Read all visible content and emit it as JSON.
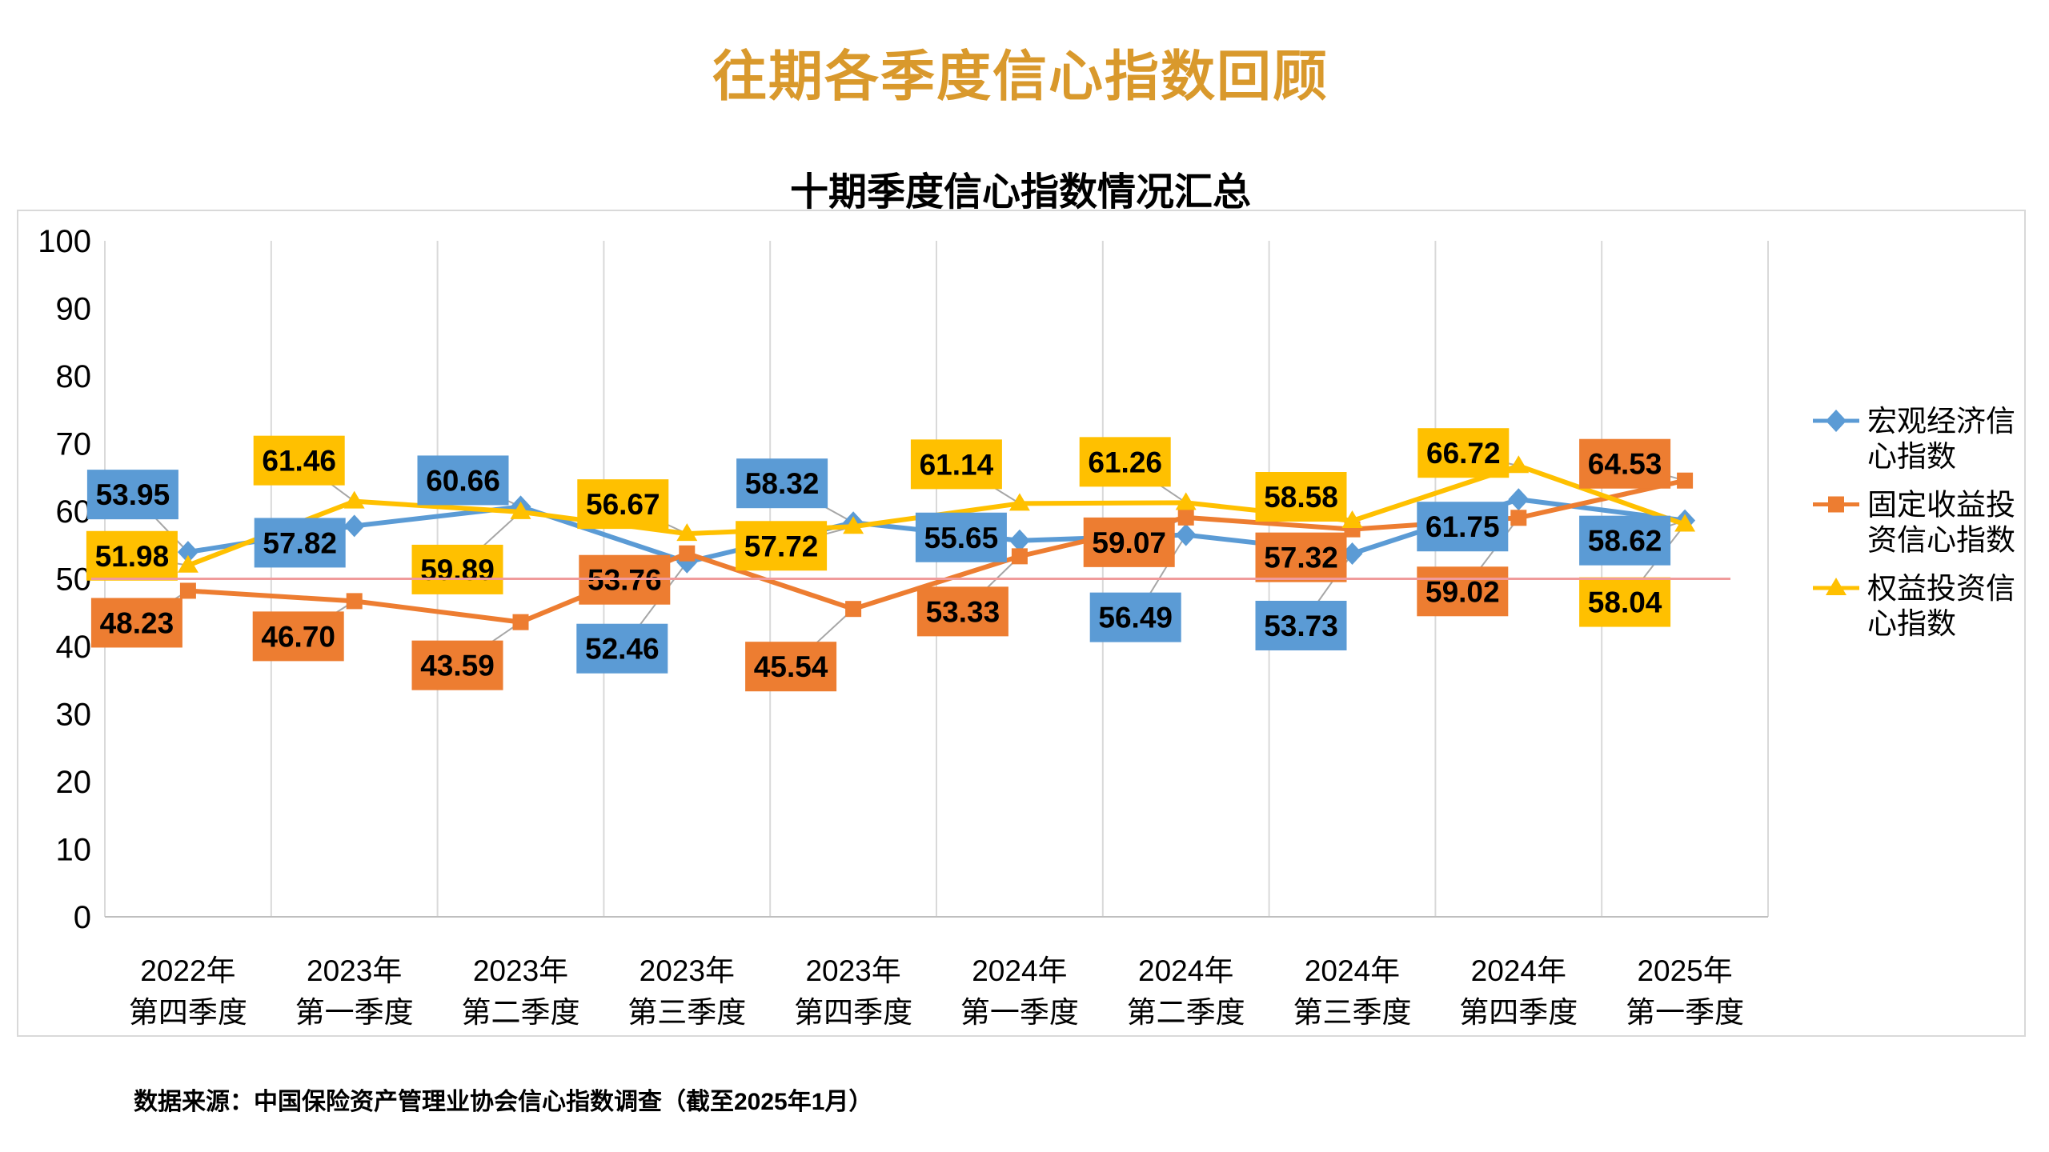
{
  "page": {
    "title": "往期各季度信心指数回顾",
    "title_color": "#D9992C",
    "source_note": "数据来源：中国保险资产管理业协会信心指数调查（截至2025年1月）"
  },
  "chart_data": {
    "type": "line",
    "title": "十期季度信心指数情况汇总",
    "categories": [
      {
        "year": "2022年",
        "quarter": "第四季度"
      },
      {
        "year": "2023年",
        "quarter": "第一季度"
      },
      {
        "year": "2023年",
        "quarter": "第二季度"
      },
      {
        "year": "2023年",
        "quarter": "第三季度"
      },
      {
        "year": "2023年",
        "quarter": "第四季度"
      },
      {
        "year": "2024年",
        "quarter": "第一季度"
      },
      {
        "year": "2024年",
        "quarter": "第二季度"
      },
      {
        "year": "2024年",
        "quarter": "第三季度"
      },
      {
        "year": "2024年",
        "quarter": "第四季度"
      },
      {
        "year": "2025年",
        "quarter": "第一季度"
      }
    ],
    "series": [
      {
        "name": "宏观经济信心指数",
        "marker": "diamond",
        "color": "#5B9BD5",
        "values": [
          53.95,
          57.82,
          60.66,
          52.46,
          58.32,
          55.65,
          56.49,
          53.73,
          61.75,
          58.62
        ]
      },
      {
        "name": "固定收益投资信心指数",
        "marker": "square",
        "color": "#ED7D31",
        "values": [
          48.23,
          46.7,
          43.59,
          53.76,
          45.54,
          53.33,
          59.07,
          57.32,
          59.02,
          64.53
        ]
      },
      {
        "name": "权益投资信心指数",
        "marker": "triangle",
        "color": "#FFC000",
        "values": [
          51.98,
          61.46,
          59.89,
          56.67,
          57.72,
          61.14,
          61.26,
          58.58,
          66.72,
          58.04
        ]
      }
    ],
    "y_axis": {
      "min": 0,
      "max": 100,
      "step": 10
    },
    "reference_line": {
      "value": 50,
      "color": "#F09B9B"
    },
    "grid": "vertical-only",
    "legend_position": "right",
    "data_labels": "boxed, 2 decimals"
  }
}
